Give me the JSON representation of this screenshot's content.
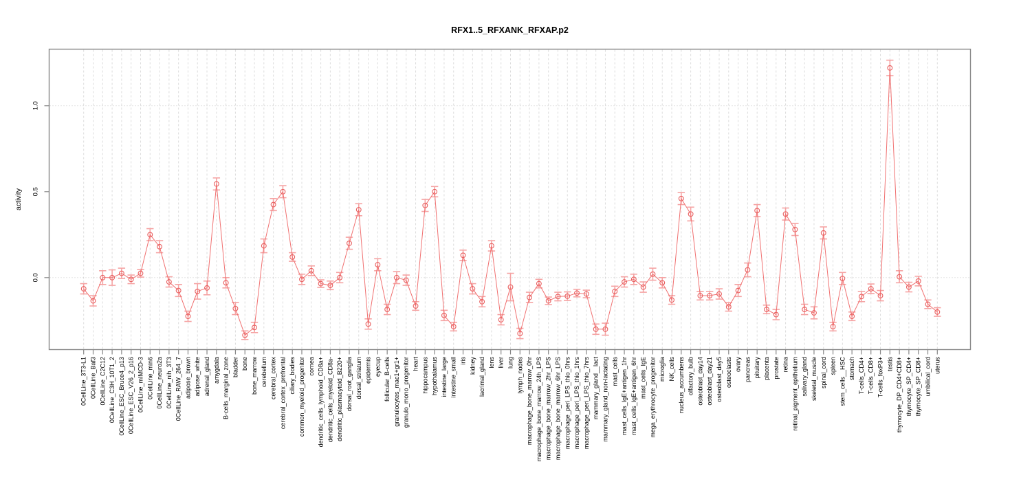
{
  "chart_data": {
    "type": "line",
    "title": "RFX1..5_RFXANK_RFXAP.p2",
    "ylabel": "activity",
    "xlabel": "",
    "legend": "none",
    "ylim": [
      -0.42,
      1.33
    ],
    "yticks": [
      0.0,
      0.5,
      1.0
    ],
    "ytick_labels": [
      "0.0",
      "0.5",
      "1.0"
    ],
    "grid": {
      "horizontal_at": [
        0.0,
        1.0
      ],
      "vertical": "per-category",
      "style": "dotted"
    },
    "marker": "open-circle",
    "error_bars": true,
    "colors": {
      "series_line": "#f07070",
      "marker_stroke": "#e85f5f",
      "errorbar": "#f5a3a3",
      "axis": "#878787",
      "grid_vertical": "#dcdcdc",
      "grid_horizontal": "#c9c9c9",
      "text": "#000000"
    },
    "categories": [
      "0CellLine_3T3-L1",
      "0CellLine_Baf3",
      "0CellLine_C2C12",
      "0CellLine_C3H_10T1_2",
      "0CellLine_ESC_Bruce4_p13",
      "0CellLine_ESC_V26_2_p16",
      "0CellLine_mIMCD-3",
      "0CellLine_min6",
      "0CellLine_neuro2a",
      "0CellLine_nih_3T3",
      "0CellLine_RAW_264_7",
      "adipose_brown",
      "adipose_white",
      "adrenal_gland",
      "amygdala",
      "B-cells_marginal_zone",
      "bladder",
      "bone",
      "bone_marrow",
      "cerebellum",
      "cerebral_cortex",
      "cerebral_cortex_prefrontal",
      "ciliary_bodies",
      "common_myeloid_progenitor",
      "cornea",
      "dendritic_cells_lymphoid_CD8a+",
      "dendritic_cells_myeloid_CD8a-",
      "dendritic_plasmacytoid_B220+",
      "dorsal_root_ganglia",
      "dorsal_striatum",
      "epidermis",
      "eyecup",
      "follicular_B-cells",
      "granulocytes_mac1+gr1+",
      "granulo_mono_progenitor",
      "heart",
      "hippocampus",
      "hypothalamus",
      "intestine_large",
      "intestine_small",
      "iris",
      "kidney",
      "lacrimal_gland",
      "lens",
      "liver",
      "lung",
      "lymph_nodes",
      "macrophage_bone_marrow_0hr",
      "macrophage_bone_marrow_24h_LPS",
      "macrophage_bone_marrow_2hr_LPS",
      "macrophage_bone_marrow_6hr_LPS",
      "macrophage_peri_LPS_thio_0hrs",
      "macrophage_peri_LPS_thio_1hrs",
      "macrophage_peri_LPS_thio_7hrs",
      "mammary_gland__lact",
      "mammary_gland_non-lactating",
      "mast_cells",
      "mast_cells_IgE+antigen_1hr",
      "mast_cells_IgE+antigen_6hr",
      "mast_cells_IgE",
      "mega_erythrocyte_progenitor",
      "microglia",
      "NK_cells",
      "nucleus_accumbens",
      "olfactory_bulb",
      "osteoblast_day14",
      "osteoblast_day21",
      "osteoblast_day5",
      "osteoclasts",
      "ovary",
      "pancreas",
      "pituitary",
      "placenta",
      "prostate",
      "retina",
      "retinal_pigment_epithelium",
      "salivary_gland",
      "skeletal_muscle",
      "spinal_cord",
      "spleen",
      "stem_cells__HSC",
      "stomach",
      "T-cells_CD4+",
      "T-cells_CD8+",
      "T-cells_foxP3+",
      "testis",
      "thymocyte_DP_CD4+CD8+",
      "thymocyte_SP_CD4+",
      "thymocyte_SP_CD8+",
      "umbilical_cord",
      "uterus"
    ],
    "values": [
      -0.065,
      -0.135,
      0.0,
      0.0,
      0.025,
      -0.01,
      0.025,
      0.25,
      0.18,
      -0.025,
      -0.075,
      -0.225,
      -0.08,
      -0.06,
      0.545,
      -0.03,
      -0.18,
      -0.335,
      -0.29,
      0.185,
      0.425,
      0.5,
      0.12,
      -0.01,
      0.04,
      -0.035,
      -0.045,
      0.0,
      0.2,
      0.395,
      -0.27,
      0.075,
      -0.185,
      0.0,
      -0.015,
      -0.165,
      0.42,
      0.5,
      -0.22,
      -0.285,
      0.13,
      -0.065,
      -0.14,
      0.185,
      -0.245,
      -0.055,
      -0.325,
      -0.115,
      -0.035,
      -0.135,
      -0.11,
      -0.108,
      -0.09,
      -0.095,
      -0.3,
      -0.3,
      -0.08,
      -0.025,
      -0.01,
      -0.055,
      0.02,
      -0.03,
      -0.13,
      0.46,
      0.37,
      -0.105,
      -0.105,
      -0.095,
      -0.17,
      -0.075,
      0.045,
      0.39,
      -0.185,
      -0.215,
      0.37,
      0.28,
      -0.185,
      -0.205,
      0.26,
      -0.285,
      -0.005,
      -0.225,
      -0.11,
      -0.065,
      -0.105,
      1.22,
      0.005,
      -0.055,
      -0.02,
      -0.155,
      -0.2
    ],
    "errors": [
      0.03,
      0.03,
      0.04,
      0.045,
      0.03,
      0.025,
      0.022,
      0.035,
      0.035,
      0.03,
      0.035,
      0.03,
      0.045,
      0.04,
      0.035,
      0.03,
      0.035,
      0.025,
      0.03,
      0.04,
      0.035,
      0.035,
      0.025,
      0.03,
      0.028,
      0.022,
      0.025,
      0.03,
      0.035,
      0.035,
      0.03,
      0.035,
      0.03,
      0.035,
      0.03,
      0.025,
      0.035,
      0.03,
      0.03,
      0.025,
      0.03,
      0.03,
      0.03,
      0.03,
      0.03,
      0.08,
      0.03,
      0.03,
      0.025,
      0.022,
      0.025,
      0.025,
      0.022,
      0.022,
      0.03,
      0.035,
      0.03,
      0.03,
      0.03,
      0.03,
      0.035,
      0.03,
      0.025,
      0.035,
      0.04,
      0.025,
      0.025,
      0.03,
      0.025,
      0.035,
      0.04,
      0.035,
      0.025,
      0.03,
      0.035,
      0.035,
      0.03,
      0.035,
      0.035,
      0.025,
      0.035,
      0.025,
      0.03,
      0.028,
      0.03,
      0.045,
      0.035,
      0.028,
      0.028,
      0.025,
      0.025
    ]
  }
}
